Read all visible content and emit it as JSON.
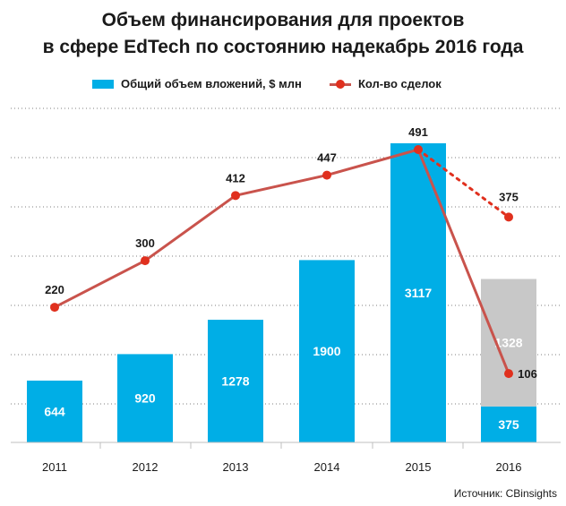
{
  "title_lines": [
    "Объем финансирования для проектов",
    "в сфере EdTech по состоянию надекабрь 2016 года"
  ],
  "legend": {
    "bars_label": "Общий объем вложений, $ млн",
    "line_label": "Кол-во сделок"
  },
  "source": "Источник: CBinsights",
  "colors": {
    "bar": "#00aee6",
    "bar_extra": "#c8c8c8",
    "line": "#c9534c",
    "point": "#e0301e",
    "grid": "#7f7f7f"
  },
  "chart_data": {
    "type": "bar",
    "categories": [
      "2011",
      "2012",
      "2013",
      "2014",
      "2015",
      "2016"
    ],
    "series": [
      {
        "name": "Общий объем вложений, $ млн",
        "type": "bar",
        "values": [
          644,
          920,
          1278,
          1900,
          3117,
          375
        ]
      },
      {
        "type": "bar",
        "stacked_on": 0,
        "values": [
          null,
          null,
          null,
          null,
          null,
          1328
        ]
      },
      {
        "name": "Кол-во сделок",
        "type": "line",
        "values": [
          220,
          300,
          412,
          447,
          491,
          106
        ]
      },
      {
        "type": "line",
        "style": "dotted",
        "points": [
          {
            "x": "2015",
            "y": 491
          },
          {
            "x": "2016",
            "y": 375
          }
        ]
      }
    ],
    "xlabel": "",
    "ylabel": "",
    "grid": true,
    "legend_position": "top"
  }
}
